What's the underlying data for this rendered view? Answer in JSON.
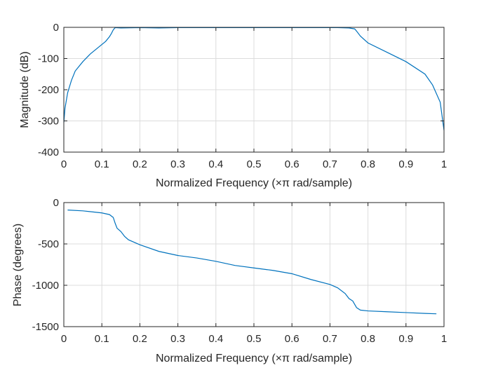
{
  "chart_data": [
    {
      "type": "line",
      "xlabel": "Normalized Frequency  (×π rad/sample)",
      "ylabel": "Magnitude (dB)",
      "xlim": [
        0,
        1
      ],
      "ylim": [
        -400,
        0
      ],
      "xticks": [
        0,
        0.1,
        0.2,
        0.3,
        0.4,
        0.5,
        0.6,
        0.7,
        0.8,
        0.9,
        1
      ],
      "xtick_labels": [
        "0",
        "0.1",
        "0.2",
        "0.3",
        "0.4",
        "0.5",
        "0.6",
        "0.7",
        "0.8",
        "0.9",
        "1"
      ],
      "yticks": [
        0,
        -100,
        -200,
        -300,
        -400
      ],
      "ytick_labels": [
        "0",
        "-100",
        "-200",
        "-300",
        "-400"
      ],
      "grid": true,
      "color": "#0072bd",
      "series": [
        {
          "x": [
            0,
            0.003,
            0.01,
            0.02,
            0.03,
            0.05,
            0.07,
            0.09,
            0.11,
            0.12,
            0.125,
            0.13,
            0.135,
            0.15,
            0.2,
            0.25,
            0.3,
            0.35,
            0.4,
            0.45,
            0.5,
            0.55,
            0.6,
            0.65,
            0.7,
            0.72,
            0.75,
            0.765,
            0.77,
            0.78,
            0.8,
            0.85,
            0.9,
            0.95,
            0.97,
            0.99,
            1
          ],
          "y": [
            -305,
            -260,
            -210,
            -170,
            -140,
            -110,
            -85,
            -65,
            -45,
            -30,
            -20,
            -8,
            -1,
            -2,
            -1,
            -2,
            -1,
            -1,
            -1,
            -1,
            -1,
            -1,
            -1,
            -1,
            -1,
            -1,
            -2,
            -5,
            -12,
            -28,
            -50,
            -80,
            -110,
            -150,
            -185,
            -240,
            -330
          ]
        }
      ]
    },
    {
      "type": "line",
      "xlabel": "Normalized Frequency  (×π rad/sample)",
      "ylabel": "Phase (degrees)",
      "xlim": [
        0,
        1
      ],
      "ylim": [
        -1500,
        0
      ],
      "xticks": [
        0,
        0.1,
        0.2,
        0.3,
        0.4,
        0.5,
        0.6,
        0.7,
        0.8,
        0.9,
        1
      ],
      "xtick_labels": [
        "0",
        "0.1",
        "0.2",
        "0.3",
        "0.4",
        "0.5",
        "0.6",
        "0.7",
        "0.8",
        "0.9",
        "1"
      ],
      "yticks": [
        0,
        -500,
        -1000,
        -1500
      ],
      "ytick_labels": [
        "0",
        "-500",
        "-1000",
        "-1500"
      ],
      "grid": true,
      "color": "#0072bd",
      "series": [
        {
          "x": [
            0.01,
            0.05,
            0.1,
            0.12,
            0.13,
            0.135,
            0.14,
            0.15,
            0.16,
            0.17,
            0.2,
            0.25,
            0.3,
            0.35,
            0.4,
            0.45,
            0.5,
            0.55,
            0.6,
            0.65,
            0.7,
            0.72,
            0.74,
            0.75,
            0.76,
            0.765,
            0.77,
            0.78,
            0.8,
            0.85,
            0.9,
            0.95,
            0.98
          ],
          "y": [
            -90,
            -100,
            -125,
            -145,
            -180,
            -250,
            -310,
            -350,
            -410,
            -450,
            -510,
            -590,
            -640,
            -670,
            -710,
            -760,
            -790,
            -820,
            -860,
            -930,
            -990,
            -1030,
            -1100,
            -1160,
            -1190,
            -1230,
            -1270,
            -1300,
            -1310,
            -1320,
            -1330,
            -1340,
            -1345
          ]
        }
      ]
    }
  ]
}
